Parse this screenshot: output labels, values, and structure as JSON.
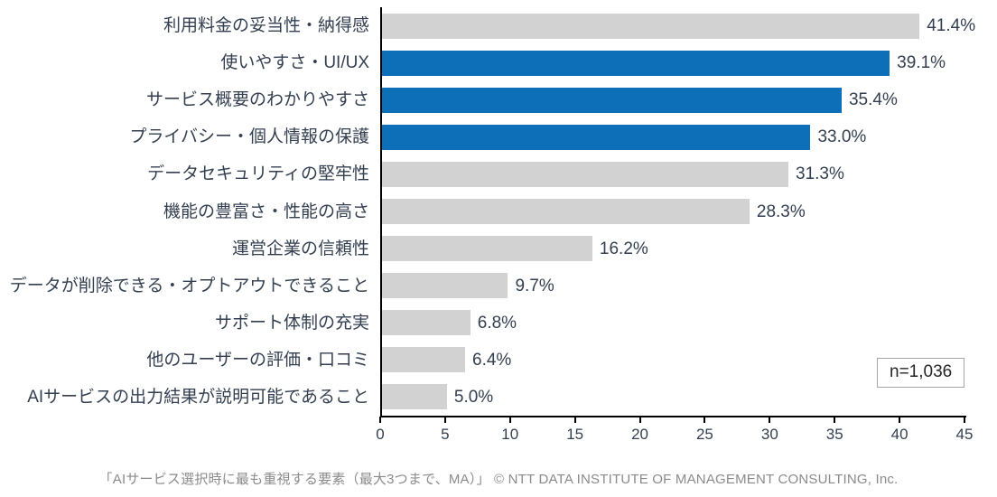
{
  "chart_data": {
    "type": "bar",
    "orientation": "horizontal",
    "categories": [
      "利用料金の妥当性・納得感",
      "使いやすさ・UI/UX",
      "サービス概要のわかりやすさ",
      "プライバシー・個人情報の保護",
      "データセキュリティの堅牢性",
      "機能の豊富さ・性能の高さ",
      "運営企業の信頼性",
      "データが削除できる・オプトアウトできること",
      "サポート体制の充実",
      "他のユーザーの評価・口コミ",
      "AIサービスの出力結果が説明可能であること"
    ],
    "values": [
      41.4,
      39.1,
      35.4,
      33.0,
      31.3,
      28.3,
      16.2,
      9.7,
      6.8,
      6.4,
      5.0
    ],
    "value_labels": [
      "41.4%",
      "39.1%",
      "35.4%",
      "33.0%",
      "31.3%",
      "28.3%",
      "16.2%",
      "9.7%",
      "6.8%",
      "6.4%",
      "5.0%"
    ],
    "highlighted": [
      false,
      true,
      true,
      true,
      false,
      false,
      false,
      false,
      false,
      false,
      false
    ],
    "xlim": [
      0,
      45
    ],
    "x_ticks": [
      0,
      5,
      10,
      15,
      20,
      25,
      30,
      35,
      40,
      45
    ],
    "grid": false,
    "legend": null,
    "colors": {
      "highlight_bar": "#0d6fb8",
      "default_bar": "#d2d2d2",
      "axis": "#000000",
      "text": "#333f50"
    }
  },
  "annotation": {
    "n_label": "n=1,036"
  },
  "footer": {
    "caption": "「AIサービス選択時に最も重視する要素（最大3つまで、MA）」 © NTT DATA INSTITUTE OF MANAGEMENT CONSULTING, Inc."
  }
}
